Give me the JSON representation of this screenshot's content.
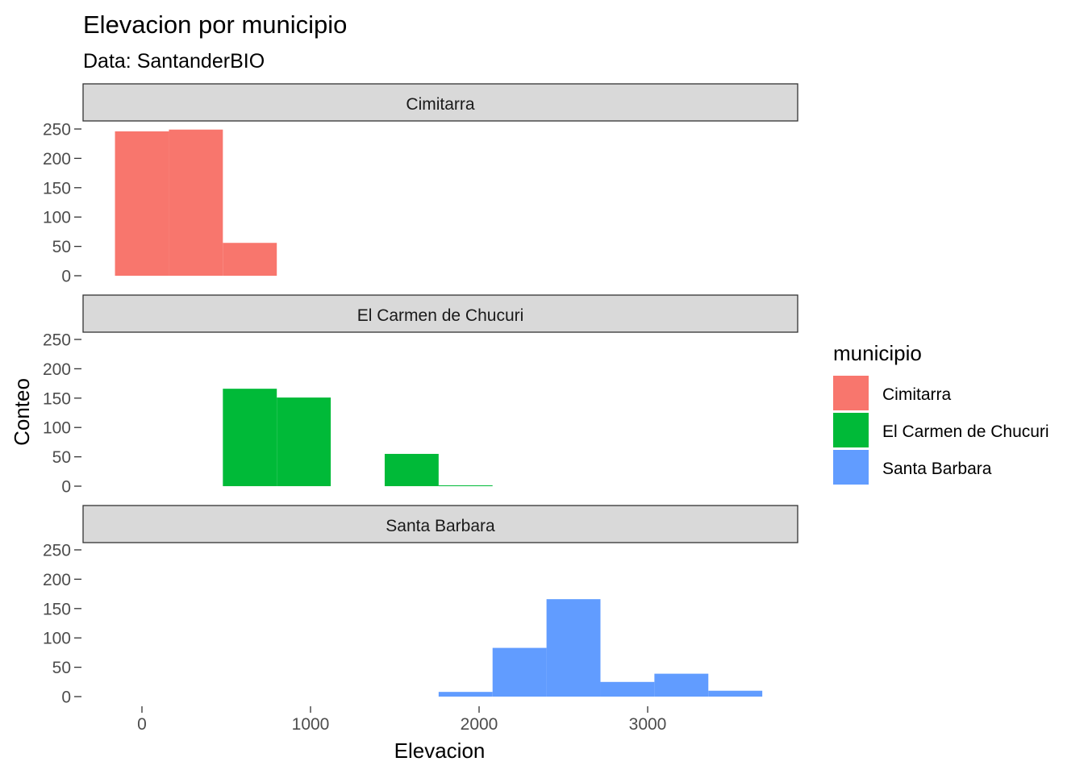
{
  "chart_data": {
    "type": "bar",
    "subtype": "faceted-histogram",
    "title": "Elevacion por municipio",
    "subtitle": "Data: SantanderBIO",
    "xlabel": "Elevacion",
    "ylabel": "Conteo",
    "x_ticks": [
      0,
      1000,
      2000,
      3000
    ],
    "x_tick_labels": [
      "0",
      "1000",
      "2000",
      "3000"
    ],
    "y_ticks": [
      0,
      50,
      100,
      150,
      200,
      250
    ],
    "y_tick_labels": [
      "0",
      "50",
      "100",
      "150",
      "200",
      "250"
    ],
    "xlim": [
      -350,
      3850
    ],
    "ylim": [
      0,
      255
    ],
    "grid": false,
    "legend": {
      "title": "municipio",
      "position": "right",
      "items": [
        "Cimitarra",
        "El Carmen de Chucuri",
        "Santa Barbara"
      ]
    },
    "bin_width": 320,
    "series": [
      {
        "name": "Cimitarra",
        "color": "#F8766D",
        "bins": [
          {
            "x0": -160,
            "x1": 160,
            "count": 246
          },
          {
            "x0": 160,
            "x1": 480,
            "count": 249
          },
          {
            "x0": 480,
            "x1": 800,
            "count": 56
          }
        ]
      },
      {
        "name": "El Carmen de Chucuri",
        "color": "#00BA38",
        "bins": [
          {
            "x0": 480,
            "x1": 800,
            "count": 166
          },
          {
            "x0": 800,
            "x1": 1120,
            "count": 151
          },
          {
            "x0": 1440,
            "x1": 1760,
            "count": 55
          },
          {
            "x0": 1760,
            "x1": 2080,
            "count": 1
          }
        ]
      },
      {
        "name": "Santa Barbara",
        "color": "#619CFF",
        "bins": [
          {
            "x0": 1760,
            "x1": 2080,
            "count": 8
          },
          {
            "x0": 2080,
            "x1": 2400,
            "count": 83
          },
          {
            "x0": 2400,
            "x1": 2720,
            "count": 166
          },
          {
            "x0": 2720,
            "x1": 3040,
            "count": 25
          },
          {
            "x0": 3040,
            "x1": 3360,
            "count": 39
          },
          {
            "x0": 3360,
            "x1": 3680,
            "count": 10
          }
        ]
      }
    ]
  }
}
